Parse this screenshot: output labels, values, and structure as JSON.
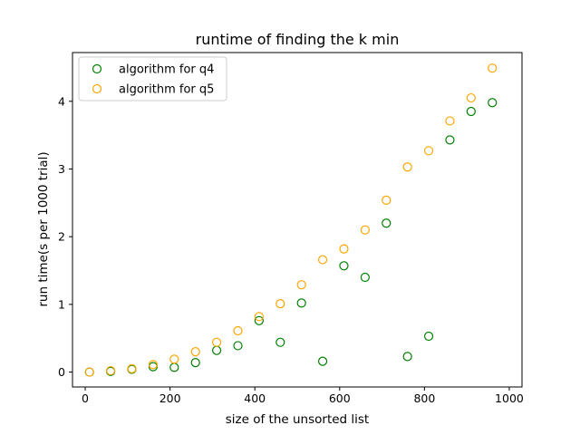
{
  "chart_data": {
    "type": "scatter",
    "title": "runtime of finding the k min",
    "xlabel": "size of the unsorted list",
    "ylabel": "run time(s per 1000 trial)",
    "xlim": [
      -30,
      1030
    ],
    "ylim": [
      -0.22,
      4.72
    ],
    "xticks": [
      0,
      200,
      400,
      600,
      800,
      1000
    ],
    "yticks": [
      0,
      1,
      2,
      3,
      4
    ],
    "grid": false,
    "legend_position": "top-left",
    "marker": "hollow-circle",
    "series": [
      {
        "name": "algorithm for q4",
        "color": "#008000",
        "x": [
          10,
          60,
          110,
          160,
          210,
          260,
          310,
          360,
          410,
          460,
          510,
          560,
          610,
          660,
          710,
          760,
          810,
          860,
          910,
          960
        ],
        "y": [
          0.0,
          0.01,
          0.04,
          0.08,
          0.07,
          0.14,
          0.32,
          0.39,
          0.76,
          0.44,
          1.02,
          0.16,
          1.57,
          1.4,
          2.2,
          0.23,
          0.53,
          3.43,
          3.85,
          3.98
        ]
      },
      {
        "name": "algorithm for q5",
        "color": "#ffa500",
        "x": [
          10,
          60,
          110,
          160,
          210,
          260,
          310,
          360,
          410,
          460,
          510,
          560,
          610,
          660,
          710,
          760,
          810,
          860,
          910,
          960
        ],
        "y": [
          0.0,
          0.02,
          0.05,
          0.11,
          0.19,
          0.3,
          0.44,
          0.61,
          0.82,
          1.01,
          1.29,
          1.66,
          1.82,
          2.1,
          2.54,
          3.03,
          3.27,
          3.71,
          4.05,
          4.49
        ]
      }
    ]
  }
}
